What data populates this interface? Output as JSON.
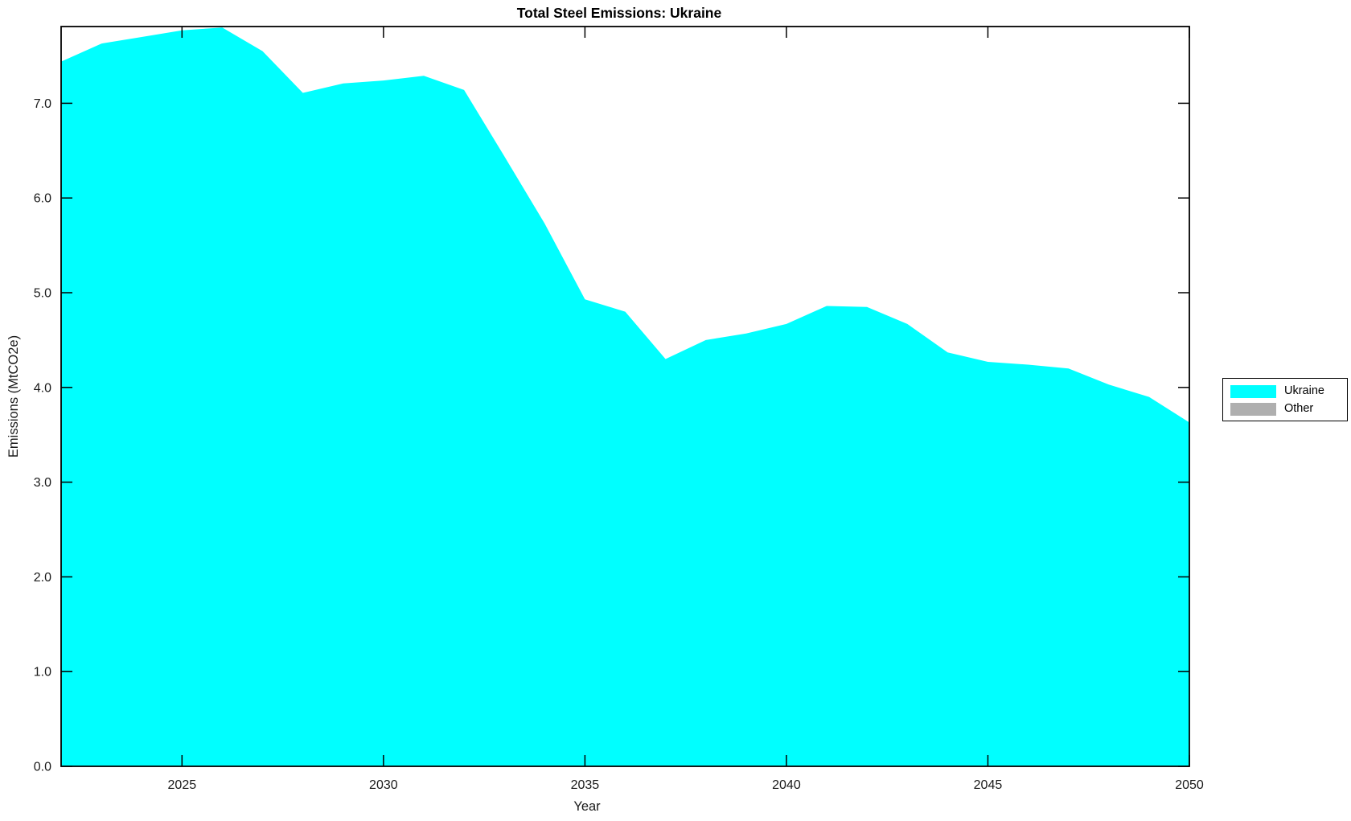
{
  "chart_data": {
    "type": "area",
    "title": "Total Steel Emissions: Ukraine",
    "xlabel": "Year",
    "ylabel": "Emissions (MtCO2e)",
    "xlim": [
      2022,
      2050
    ],
    "ylim": [
      0,
      7.81
    ],
    "x_ticks": [
      2025,
      2030,
      2035,
      2040,
      2045,
      2050
    ],
    "y_ticks": [
      0.0,
      1.0,
      2.0,
      3.0,
      4.0,
      5.0,
      6.0,
      7.0
    ],
    "y_tick_decimals": 1,
    "grid": false,
    "background_color": "#ffffff",
    "axis_color": "#000000",
    "series": [
      {
        "name": "Ukraine",
        "color": "#00ffff",
        "x": [
          2022,
          2023,
          2024,
          2025,
          2026,
          2027,
          2028,
          2029,
          2030,
          2031,
          2032,
          2033,
          2034,
          2035,
          2036,
          2037,
          2038,
          2039,
          2040,
          2041,
          2042,
          2043,
          2044,
          2045,
          2046,
          2047,
          2048,
          2049,
          2050
        ],
        "values": [
          7.44,
          7.63,
          7.7,
          7.77,
          7.8,
          7.55,
          7.11,
          7.21,
          7.24,
          7.29,
          7.14,
          6.44,
          5.73,
          4.93,
          4.8,
          4.3,
          4.5,
          4.57,
          4.67,
          4.86,
          4.85,
          4.67,
          4.37,
          4.27,
          4.24,
          4.2,
          4.03,
          3.9,
          3.63
        ]
      }
    ],
    "legend": {
      "position": "outside-right",
      "entries": [
        {
          "label": "Ukraine",
          "color": "#00ffff"
        },
        {
          "label": "Other",
          "color": "#afafaf"
        }
      ]
    }
  }
}
